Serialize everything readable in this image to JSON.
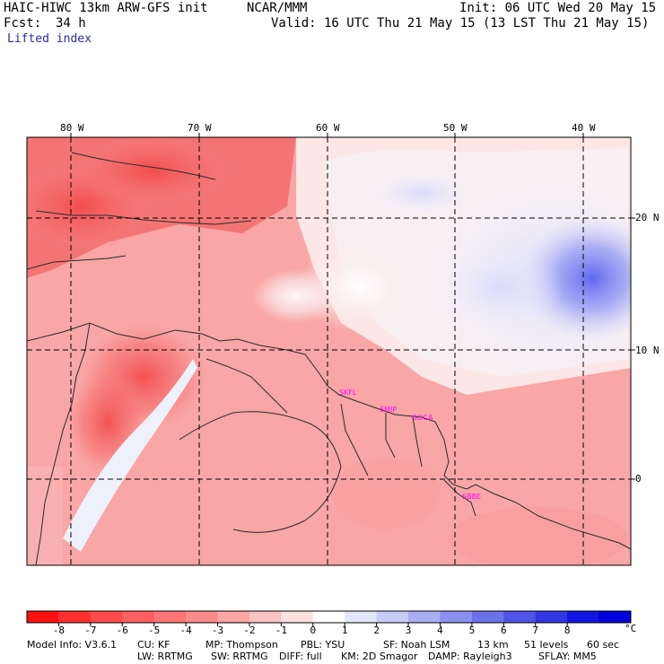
{
  "header": {
    "model": "HAIC-HIWC 13km ARW-GFS init",
    "org": "NCAR/MMM",
    "init": "Init: 06 UTC Wed 20 May 15",
    "fcst_label": "Fcst:",
    "fcst_value": "34 h",
    "valid": "Valid: 16 UTC Thu 21 May 15 (13 LST Thu 21 May 15)",
    "field": "Lifted index"
  },
  "map": {
    "longitude_labels": [
      "80 W",
      "70 W",
      "60 W",
      "50 W",
      "40 W"
    ],
    "latitude_labels": [
      "20 N",
      "10 N",
      "0"
    ],
    "station_labels": [
      "SKFL",
      "SMJP",
      "SOCA",
      "SBBE"
    ]
  },
  "colorbar": {
    "unit": "°C",
    "ticks": [
      "-8",
      "-7",
      "-6",
      "-5",
      "-4",
      "-3",
      "-2",
      "-1",
      "0",
      "1",
      "2",
      "3",
      "4",
      "5",
      "6",
      "7",
      "8"
    ],
    "colors": [
      "#ff1010",
      "#ff3030",
      "#fe4a4a",
      "#fd5f5f",
      "#fc7575",
      "#fb8b8b",
      "#fba5a5",
      "#fcc2c2",
      "#fde0e0",
      "#ffffff",
      "#e4e6fb",
      "#c8cbf7",
      "#a9aef3",
      "#8b90ef",
      "#6d72eb",
      "#4f54e7",
      "#3136e3",
      "#1016df",
      "#0000dd"
    ]
  },
  "model_info": {
    "line1": [
      "Model Info: V3.6.1",
      "CU: KF",
      "MP: Thompson",
      "PBL: YSU",
      "SF: Noah LSM",
      "13 km",
      "51 levels",
      "60 sec"
    ],
    "line2": [
      "LW: RRTMG",
      "SW: RRTMG",
      "DIFF: full",
      "KM: 2D Smagor",
      "DAMP: Rayleigh3",
      "SFLAY: MM5"
    ]
  }
}
